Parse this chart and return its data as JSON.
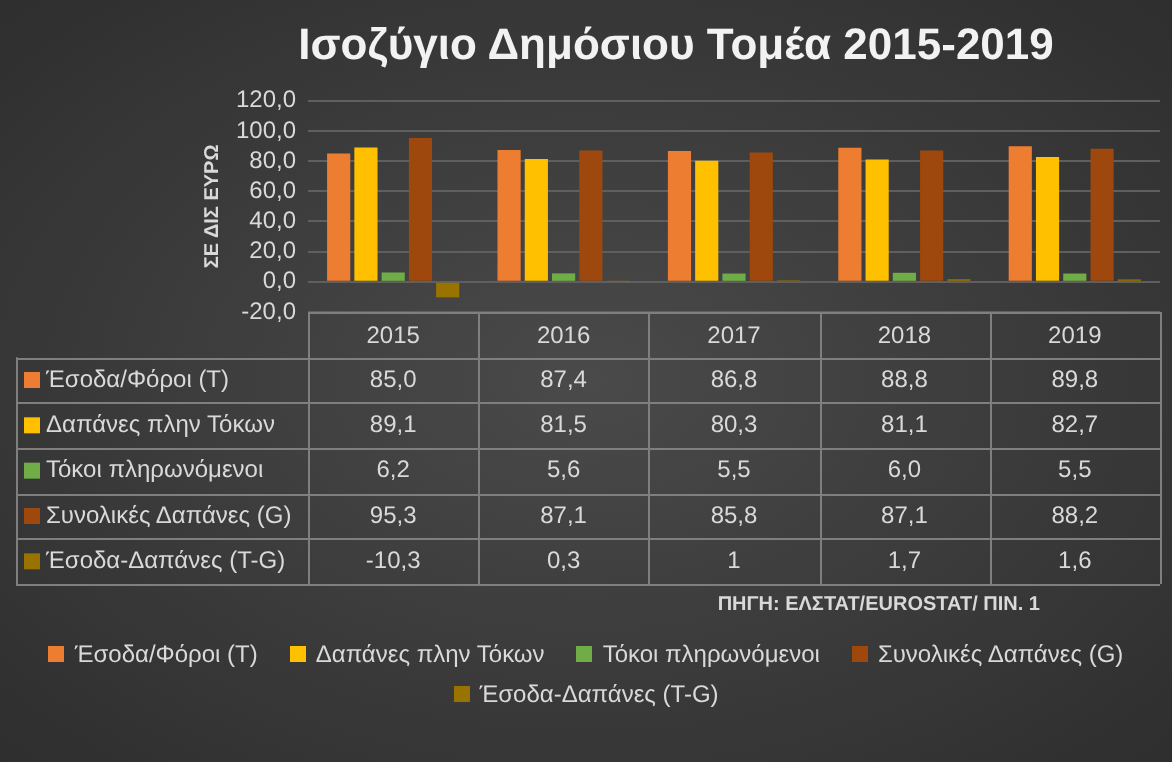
{
  "chart_data": {
    "type": "bar",
    "title": "Ισοζύγιο Δημόσιου Τομέα 2015-2019",
    "ylabel": "ΣΕ ΔΙΣ ΕΥΡΩ",
    "categories": [
      "2015",
      "2016",
      "2017",
      "2018",
      "2019"
    ],
    "series": [
      {
        "name": "Έσοδα/Φόροι (T)",
        "color": "#ed7d31",
        "values": [
          85.0,
          87.4,
          86.8,
          88.8,
          89.8
        ],
        "value_labels": [
          "85,0",
          "87,4",
          "86,8",
          "88,8",
          "89,8"
        ]
      },
      {
        "name": "Δαπάνες πλην Τόκων",
        "color": "#ffc000",
        "values": [
          89.1,
          81.5,
          80.3,
          81.1,
          82.7
        ],
        "value_labels": [
          "89,1",
          "81,5",
          "80,3",
          "81,1",
          "82,7"
        ]
      },
      {
        "name": "Τόκοι πληρωνόμενοι",
        "color": "#70ad47",
        "values": [
          6.2,
          5.6,
          5.5,
          6.0,
          5.5
        ],
        "value_labels": [
          "6,2",
          "5,6",
          "5,5",
          "6,0",
          "5,5"
        ]
      },
      {
        "name": "Συνολικές Δαπάνες (G)",
        "color": "#9e480e",
        "values": [
          95.3,
          87.1,
          85.8,
          87.1,
          88.2
        ],
        "value_labels": [
          "95,3",
          "87,1",
          "85,8",
          "87,1",
          "88,2"
        ]
      },
      {
        "name": "Έσοδα-Δαπάνες (T-G)",
        "color": "#997300",
        "values": [
          -10.3,
          0.3,
          1,
          1.7,
          1.6
        ],
        "value_labels": [
          "-10,3",
          "0,3",
          "1",
          "1,7",
          "1,6"
        ]
      }
    ],
    "ylim": [
      -20,
      120
    ],
    "yticks": [
      {
        "value": -20,
        "label": "-20,0"
      },
      {
        "value": 0,
        "label": "0,0"
      },
      {
        "value": 20,
        "label": "20,0"
      },
      {
        "value": 40,
        "label": "40,0"
      },
      {
        "value": 60,
        "label": "60,0"
      },
      {
        "value": 80,
        "label": "80,0"
      },
      {
        "value": 100,
        "label": "100,0"
      },
      {
        "value": 120,
        "label": "120,0"
      }
    ],
    "grid": "y",
    "legend": "bottom",
    "annotations": [
      "ΠΗΓΗ: ΕΛΣΤΑΤ/EUROSTAT/ ΠΙΝ. 1"
    ]
  }
}
